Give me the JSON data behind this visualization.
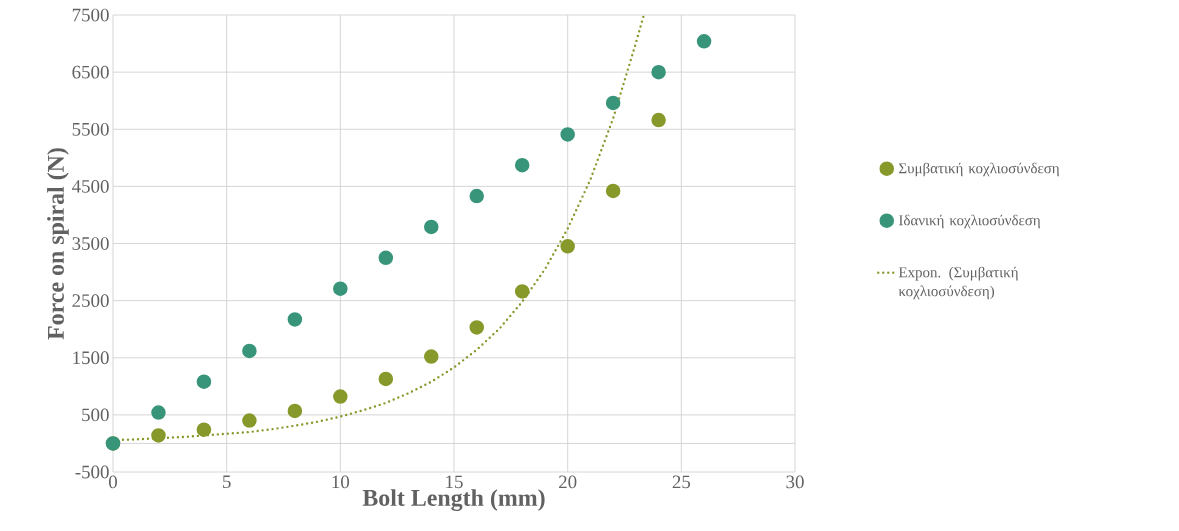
{
  "chart_data": {
    "type": "scatter",
    "xlabel": "Bolt Length (mm)",
    "ylabel": "Force on spiral (N)",
    "xlim": [
      0,
      30
    ],
    "xticks": [
      0,
      5,
      10,
      15,
      20,
      25,
      30
    ],
    "ylim": [
      -500,
      7500
    ],
    "yticks": [
      -500,
      {
        "value": 0,
        "label": null
      },
      500,
      1500,
      2500,
      3500,
      4500,
      5500,
      6500,
      7500
    ],
    "grid": true,
    "legend": "right",
    "marker": "circle",
    "series": [
      {
        "name": "Συμβατική κοχλιοσύνδεση",
        "color": "#86992a",
        "x": [
          0,
          2,
          4,
          6,
          8,
          10,
          12,
          14,
          16,
          18,
          20,
          22,
          24
        ],
        "values": [
          0,
          140,
          240,
          400,
          570,
          820,
          1130,
          1520,
          2030,
          2660,
          3450,
          4420,
          5660
        ]
      },
      {
        "name": "Ιδανική κοχλιοσύνδεση",
        "color": "#38957a",
        "x": [
          0,
          2,
          4,
          6,
          8,
          10,
          12,
          14,
          16,
          18,
          20,
          22,
          24,
          26
        ],
        "values": [
          0,
          540,
          1080,
          1620,
          2170,
          2710,
          3250,
          3790,
          4330,
          4870,
          5410,
          5960,
          6500,
          7040
        ]
      },
      {
        "name": "Expon. (Συμβατική κοχλιοσύνδεση)",
        "type": "line",
        "line_style": "dotted",
        "marker": "none",
        "color": "#86992a",
        "x": [
          0,
          1,
          2,
          3,
          4,
          5,
          6,
          7,
          8,
          9,
          10,
          11,
          12,
          13,
          14,
          15,
          16,
          17,
          18,
          19,
          20,
          21,
          22,
          23,
          23.35
        ],
        "values": [
          60,
          70,
          90,
          110,
          140,
          170,
          200,
          250,
          310,
          380,
          470,
          580,
          710,
          880,
          1080,
          1330,
          1640,
          2010,
          2480,
          3050,
          3760,
          4620,
          5690,
          7010,
          7500
        ]
      }
    ]
  }
}
